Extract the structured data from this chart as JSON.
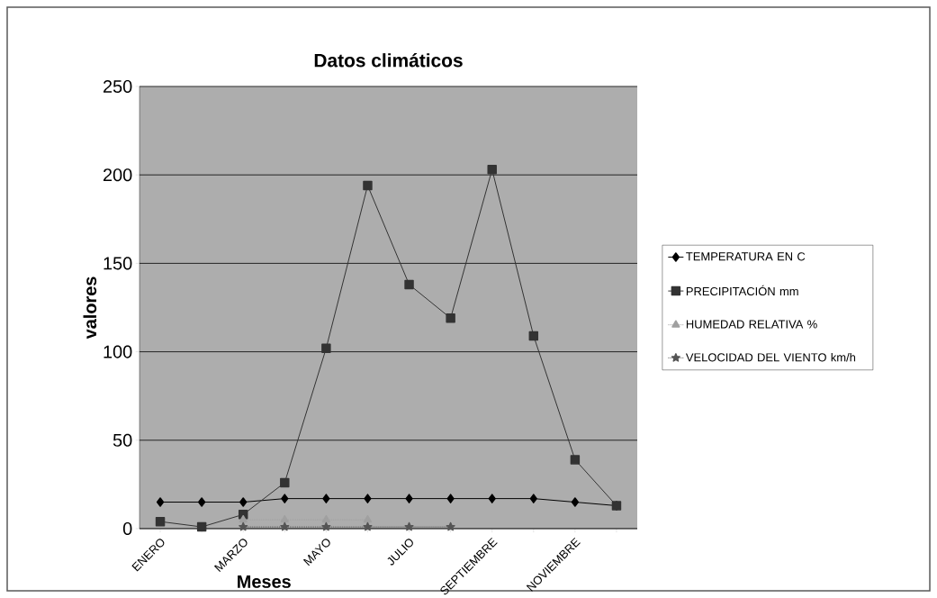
{
  "chart_data": {
    "type": "line",
    "title": "Datos climáticos",
    "xlabel": "Meses",
    "ylabel": "valores",
    "categories": [
      "ENERO",
      null,
      "MARZO",
      null,
      "MAYO",
      null,
      "JULIO",
      null,
      "SEPTIEMBRE",
      null,
      "NOVIEMBRE",
      null
    ],
    "series": [
      {
        "name": "TEMPERATURA EN C",
        "color": "#000000",
        "marker": "diamond",
        "line_style": "solid",
        "values": [
          15,
          15,
          15,
          17,
          17,
          17,
          17,
          17,
          17,
          17,
          15,
          13
        ]
      },
      {
        "name": "PRECIPITACIÓN mm",
        "color": "#333333",
        "marker": "square",
        "line_style": "solid",
        "values": [
          4,
          1,
          8,
          26,
          102,
          194,
          138,
          119,
          203,
          109,
          39,
          13
        ]
      },
      {
        "name": "HUMEDAD RELATIVA %",
        "color": "#a0a0a0",
        "marker": "triangle",
        "line_style": "dotted",
        "values": [
          null,
          null,
          5,
          5,
          5,
          5,
          null,
          null,
          null,
          null,
          null,
          null
        ]
      },
      {
        "name": "VELOCIDAD DEL VIENTO km/h",
        "color": "#555555",
        "marker": "star",
        "line_style": "dotted",
        "values": [
          null,
          null,
          1,
          1,
          1,
          1,
          1,
          1,
          null,
          null,
          null,
          null
        ]
      }
    ],
    "ylim": [
      0,
      250
    ],
    "yticks": [
      0,
      50,
      100,
      150,
      200,
      250
    ],
    "grid": "y",
    "legend": "right"
  }
}
